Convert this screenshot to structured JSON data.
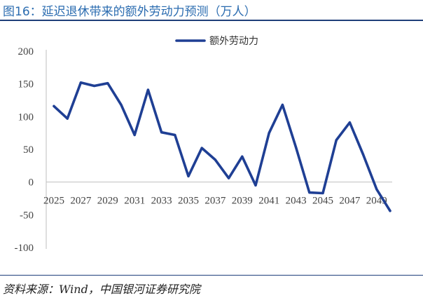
{
  "title": "图16：延迟退休带来的额外劳动力预测（万人）",
  "source": "资料来源：Wind，中国银河证券研究院",
  "colors": {
    "accent": "#2b6cb0",
    "line": "#1f3f94",
    "rule": "#1f3f7a"
  },
  "chart_data": {
    "type": "line",
    "title": "",
    "xlabel": "",
    "ylabel": "",
    "ylim": [
      -100,
      200
    ],
    "yticks": [
      200,
      150,
      100,
      50,
      0,
      -50,
      -100
    ],
    "x_tick_labels": [
      "2025",
      "2027",
      "2029",
      "2031",
      "2033",
      "2035",
      "2037",
      "2039",
      "2041",
      "2043",
      "2045",
      "2047",
      "2049"
    ],
    "legend": {
      "position": "top-center"
    },
    "grid": false,
    "x": [
      2025,
      2026,
      2027,
      2028,
      2029,
      2030,
      2031,
      2032,
      2033,
      2034,
      2035,
      2036,
      2037,
      2038,
      2039,
      2040,
      2041,
      2042,
      2043,
      2044,
      2045,
      2046,
      2047,
      2048,
      2049,
      2050
    ],
    "series": [
      {
        "name": "额外劳动力",
        "values": [
          116,
          97,
          152,
          147,
          151,
          118,
          72,
          141,
          76,
          72,
          9,
          52,
          34,
          6,
          39,
          -5,
          75,
          118,
          53,
          -16,
          -17,
          64,
          91,
          42,
          -11,
          -44
        ]
      }
    ]
  }
}
